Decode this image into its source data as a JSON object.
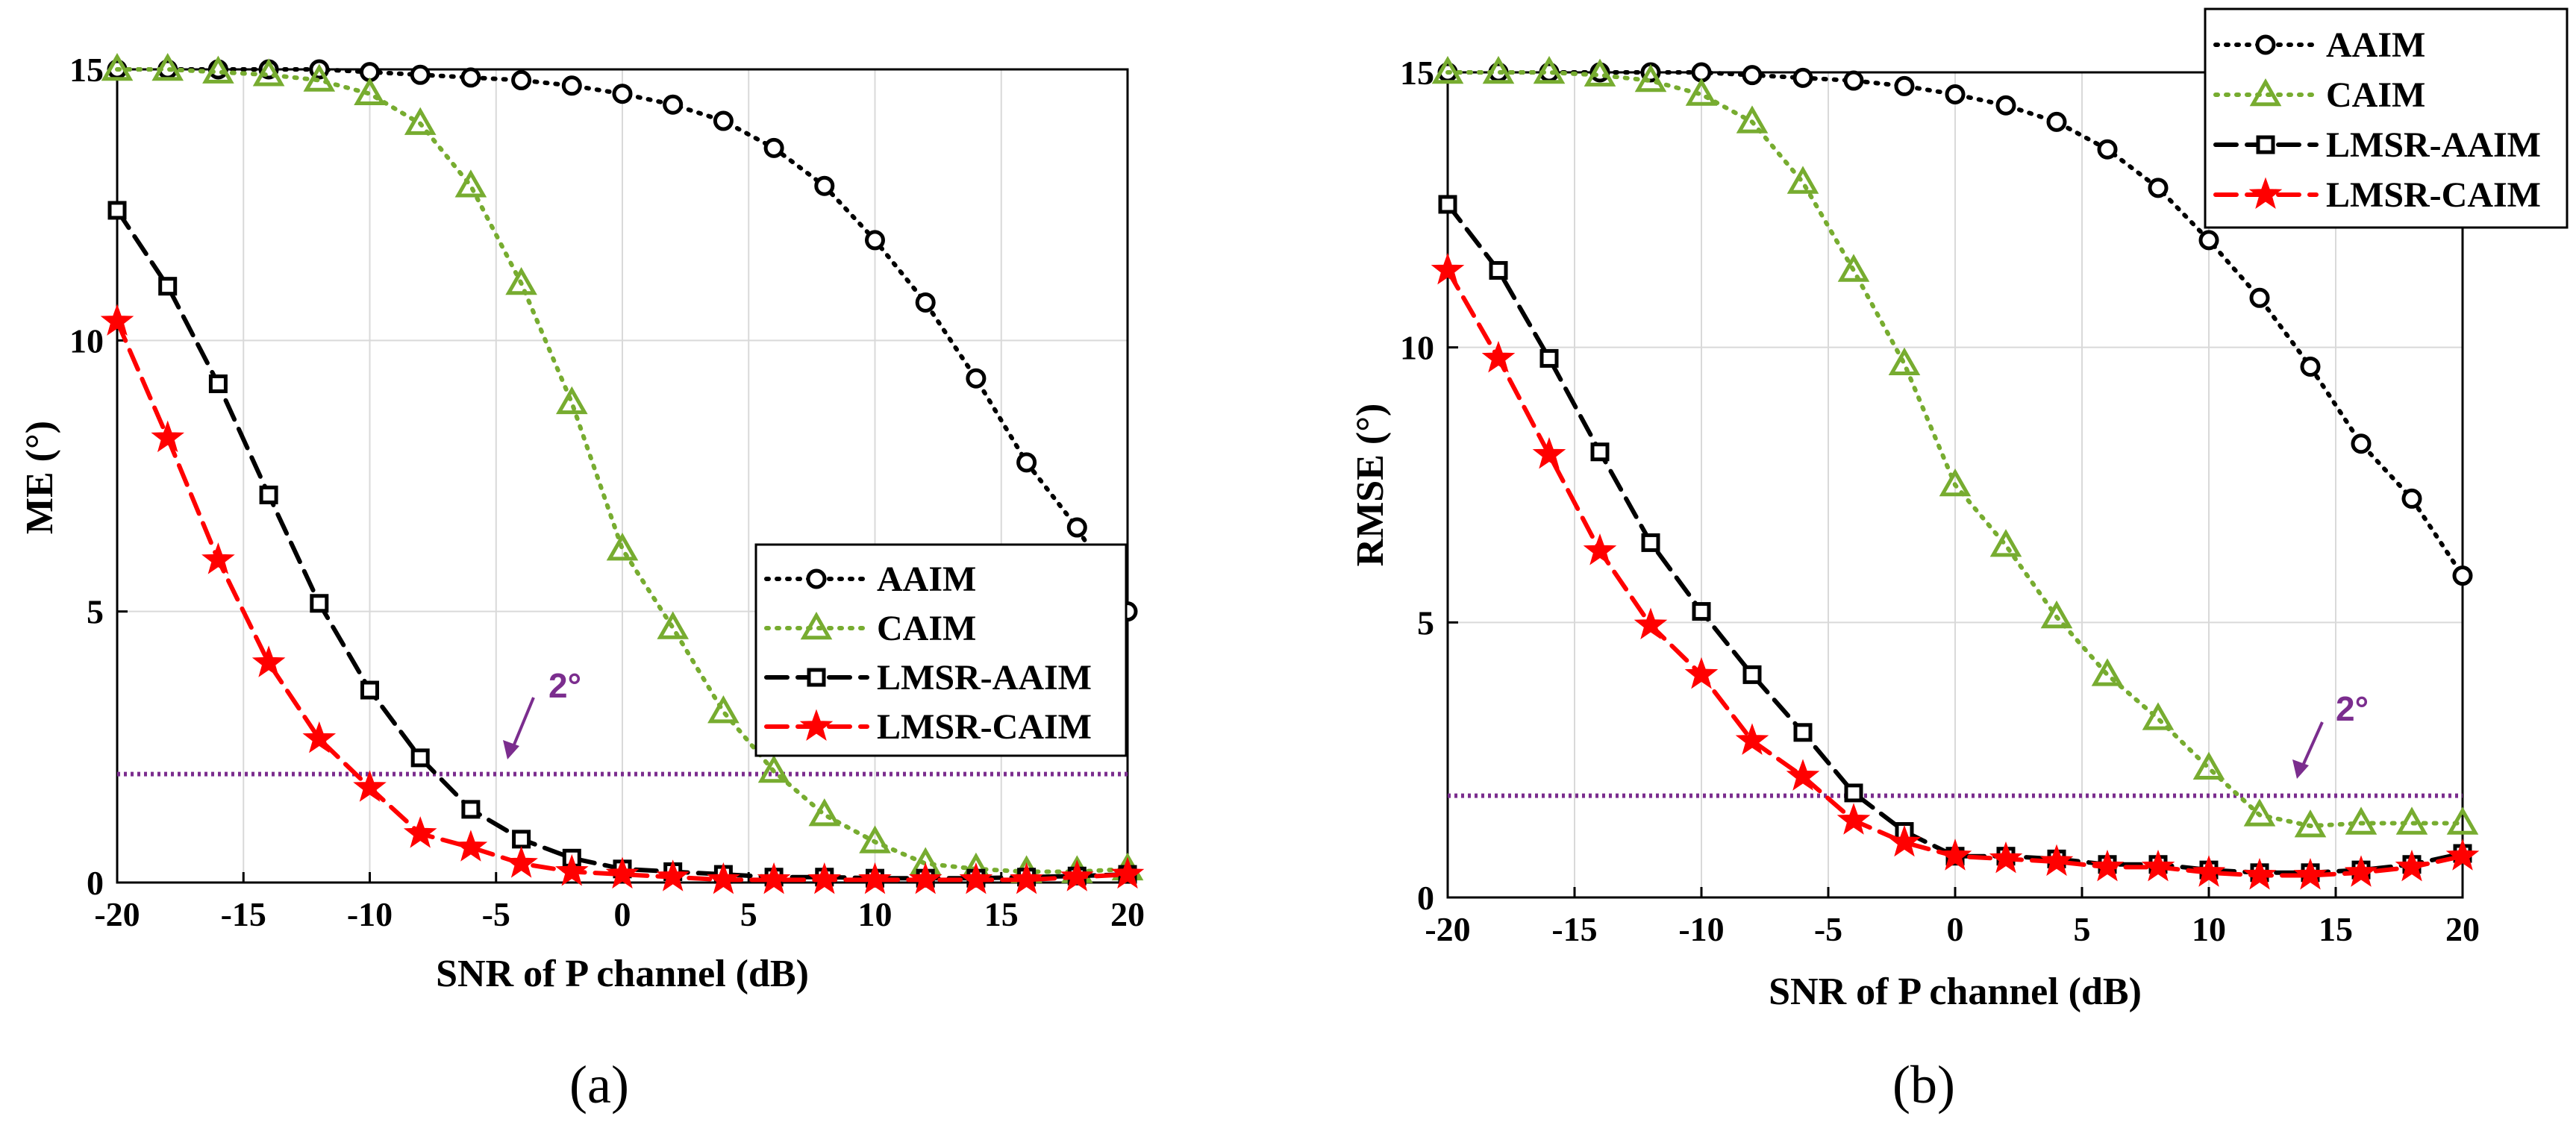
{
  "chart_data": [
    {
      "type": "line",
      "panel": "a",
      "caption": "(a)",
      "xlabel": "SNR of P channel (dB)",
      "ylabel": "ME (°)",
      "xlim": [
        -20,
        20
      ],
      "ylim": [
        0,
        15
      ],
      "xticks": [
        -20,
        -15,
        -10,
        -5,
        0,
        5,
        10,
        15,
        20
      ],
      "yticks": [
        0,
        5,
        10,
        15
      ],
      "grid": true,
      "legend_position": "center-right",
      "x": [
        -20,
        -18,
        -16,
        -14,
        -12,
        -10,
        -8,
        -6,
        -4,
        -2,
        0,
        2,
        4,
        6,
        8,
        10,
        12,
        14,
        16,
        18,
        20
      ],
      "series": [
        {
          "name": "AAIM",
          "color": "#000000",
          "style": "dotted",
          "marker": "circle",
          "values": [
            15,
            15,
            15,
            15,
            15,
            14.95,
            14.9,
            14.85,
            14.8,
            14.7,
            14.55,
            14.35,
            14.05,
            13.55,
            12.85,
            11.85,
            10.7,
            9.3,
            7.75,
            6.55,
            5.0
          ]
        },
        {
          "name": "CAIM",
          "color": "#77ac30",
          "style": "dotted",
          "marker": "triangle",
          "values": [
            15,
            15,
            14.95,
            14.9,
            14.8,
            14.55,
            14.0,
            12.85,
            11.05,
            8.85,
            6.15,
            4.7,
            3.15,
            2.05,
            1.25,
            0.75,
            0.35,
            0.25,
            0.2,
            0.2,
            0.25
          ]
        },
        {
          "name": "LMSR-AAIM",
          "color": "#000000",
          "style": "dashed",
          "marker": "square",
          "values": [
            12.4,
            11.0,
            9.2,
            7.15,
            5.15,
            3.55,
            2.3,
            1.35,
            0.8,
            0.45,
            0.25,
            0.2,
            0.15,
            0.1,
            0.1,
            0.08,
            0.08,
            0.08,
            0.1,
            0.12,
            0.15
          ]
        },
        {
          "name": "LMSR-CAIM",
          "color": "#ff0000",
          "style": "dashed",
          "marker": "star",
          "values": [
            10.35,
            8.2,
            5.95,
            4.05,
            2.65,
            1.75,
            0.9,
            0.65,
            0.35,
            0.2,
            0.15,
            0.1,
            0.05,
            0.05,
            0.05,
            0.05,
            0.05,
            0.05,
            0.05,
            0.1,
            0.15
          ]
        }
      ],
      "threshold": {
        "value": 2,
        "label": "2°",
        "color": "#7b2d8e"
      }
    },
    {
      "type": "line",
      "panel": "b",
      "caption": "(b)",
      "xlabel": "SNR of P channel (dB)",
      "ylabel": "RMSE (°)",
      "xlim": [
        -20,
        20
      ],
      "ylim": [
        0,
        15
      ],
      "xticks": [
        -20,
        -15,
        -10,
        -5,
        0,
        5,
        10,
        15,
        20
      ],
      "yticks": [
        0,
        5,
        10,
        15
      ],
      "grid": true,
      "legend_position": "top-right",
      "x": [
        -20,
        -18,
        -16,
        -14,
        -12,
        -10,
        -8,
        -6,
        -4,
        -2,
        0,
        2,
        4,
        6,
        8,
        10,
        12,
        14,
        16,
        18,
        20
      ],
      "series": [
        {
          "name": "AAIM",
          "color": "#000000",
          "style": "dotted",
          "marker": "circle",
          "values": [
            15,
            15,
            15,
            15,
            15,
            15,
            14.95,
            14.9,
            14.85,
            14.75,
            14.6,
            14.4,
            14.1,
            13.6,
            12.9,
            11.95,
            10.9,
            9.65,
            8.25,
            7.25,
            5.85
          ]
        },
        {
          "name": "CAIM",
          "color": "#77ac30",
          "style": "dotted",
          "marker": "triangle",
          "values": [
            15,
            15,
            15,
            14.95,
            14.85,
            14.6,
            14.1,
            13.0,
            11.4,
            9.7,
            7.5,
            6.4,
            5.1,
            4.05,
            3.25,
            2.35,
            1.5,
            1.3,
            1.35,
            1.35,
            1.35
          ]
        },
        {
          "name": "LMSR-AAIM",
          "color": "#000000",
          "style": "dashed",
          "marker": "square",
          "values": [
            12.6,
            11.4,
            9.8,
            8.1,
            6.45,
            5.2,
            4.05,
            3.0,
            1.9,
            1.2,
            0.75,
            0.75,
            0.7,
            0.6,
            0.6,
            0.5,
            0.45,
            0.45,
            0.5,
            0.6,
            0.8
          ]
        },
        {
          "name": "LMSR-CAIM",
          "color": "#ff0000",
          "style": "dashed",
          "marker": "star",
          "values": [
            11.4,
            9.8,
            8.05,
            6.3,
            4.95,
            4.05,
            2.85,
            2.2,
            1.4,
            1.0,
            0.75,
            0.7,
            0.65,
            0.55,
            0.55,
            0.45,
            0.4,
            0.4,
            0.45,
            0.55,
            0.75
          ]
        }
      ],
      "threshold": {
        "value": 1.85,
        "label": "2°",
        "color": "#7b2d8e"
      }
    }
  ]
}
